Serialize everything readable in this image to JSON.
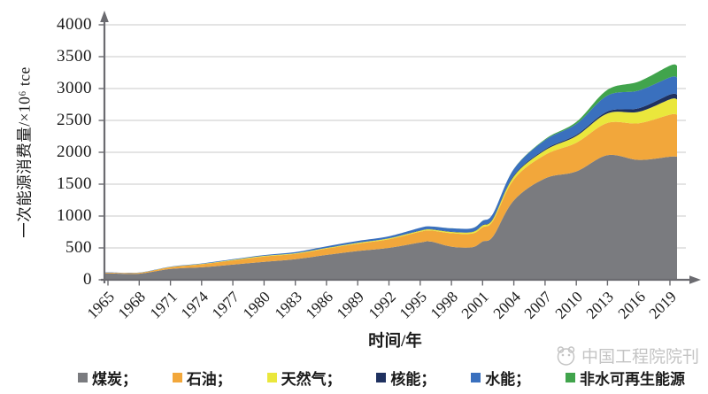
{
  "chart_data": {
    "type": "area",
    "stacked": true,
    "title": "",
    "xlabel": "时间/年",
    "ylabel": "一次能源消费量/×10⁶ tce",
    "ylim": [
      0,
      4000
    ],
    "ytick_step": 500,
    "grid": true,
    "legend_position": "bottom",
    "xtick_years": [
      1965,
      1968,
      1971,
      1974,
      1977,
      1980,
      1983,
      1986,
      1989,
      1992,
      1995,
      1998,
      2001,
      2004,
      2007,
      2010,
      2013,
      2016,
      2019
    ],
    "x_years": [
      1965,
      1968,
      1971,
      1974,
      1977,
      1980,
      1983,
      1986,
      1989,
      1992,
      1995,
      1996,
      1998,
      2000,
      2001,
      2002,
      2004,
      2007,
      2010,
      2013,
      2016,
      2019
    ],
    "series": [
      {
        "key": "coal",
        "name": "煤炭",
        "color": "#7A7B7F",
        "values": [
          100,
          96,
          170,
          196,
          238,
          280,
          322,
          390,
          452,
          500,
          585,
          600,
          520,
          510,
          600,
          680,
          1245,
          1590,
          1700,
          1955,
          1880,
          1930
        ]
      },
      {
        "key": "oil",
        "name": "石油",
        "color": "#F2A73B",
        "values": [
          12,
          14,
          28,
          47,
          66,
          85,
          83,
          99,
          115,
          136,
          168,
          172,
          210,
          215,
          225,
          245,
          330,
          370,
          450,
          505,
          575,
          660
        ]
      },
      {
        "key": "gas",
        "name": "天然气",
        "color": "#EAE73C",
        "values": [
          1,
          1,
          3,
          5,
          8,
          10,
          10,
          11,
          13,
          14,
          17,
          18,
          20,
          24,
          28,
          31,
          47,
          70,
          105,
          150,
          180,
          240
        ]
      },
      {
        "key": "nuclear",
        "name": "核能",
        "color": "#1F3160",
        "values": [
          0,
          0,
          0,
          0,
          0,
          0,
          0,
          0,
          0,
          1,
          4,
          4,
          5,
          5,
          6,
          9,
          15,
          17,
          20,
          30,
          55,
          75
        ]
      },
      {
        "key": "hydro",
        "name": "水能",
        "color": "#3A70BE",
        "values": [
          5,
          4,
          6,
          8,
          10,
          13,
          20,
          25,
          30,
          31,
          41,
          44,
          52,
          55,
          65,
          72,
          100,
          145,
          170,
          250,
          280,
          270
        ]
      },
      {
        "key": "renewables",
        "name": "非水可再生能源",
        "color": "#41A44C",
        "values": [
          0,
          0,
          0,
          0,
          0,
          0,
          0,
          0,
          0,
          0,
          0,
          0,
          1,
          1,
          2,
          2,
          3,
          13,
          30,
          90,
          140,
          185
        ]
      }
    ]
  },
  "legend": {
    "items": [
      {
        "key": "coal",
        "label": "煤炭；"
      },
      {
        "key": "oil",
        "label": "石油；"
      },
      {
        "key": "gas",
        "label": "天然气；"
      },
      {
        "key": "nuclear",
        "label": "核能；"
      },
      {
        "key": "hydro",
        "label": "水能；"
      },
      {
        "key": "renewables",
        "label": "非水可再生能源"
      }
    ]
  },
  "watermark": {
    "text": "中国工程院院刊"
  },
  "colors": {
    "axis": "#6B6B70",
    "grid": "#C8C8C8",
    "text": "#1A1A1A",
    "watermark": "#C4C4C4"
  }
}
